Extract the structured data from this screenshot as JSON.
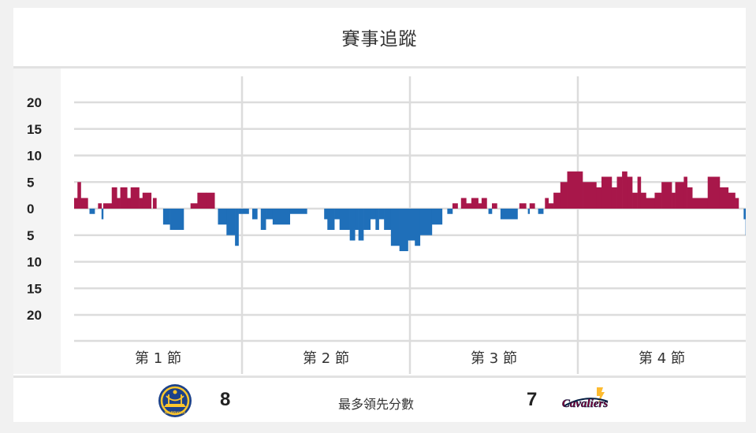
{
  "header": {
    "title": "賽事追蹤"
  },
  "footer": {
    "left_team": {
      "icon": "golden-state-warriors-logo",
      "value": "8",
      "logo_text": "WARRIORS"
    },
    "label": "最多領先分數",
    "right_team": {
      "icon": "cleveland-cavaliers-logo",
      "value": "7",
      "logo_text": "Cavaliers"
    }
  },
  "colors": {
    "positive": "#a8174a",
    "negative": "#1f6fb9",
    "grid": "#dcdcdc"
  },
  "chart_data": {
    "type": "bar",
    "title": "賽事追蹤",
    "ylim": [
      -20,
      20
    ],
    "ytick_labels": [
      "20",
      "15",
      "10",
      "5",
      "0",
      "5",
      "10",
      "15",
      "20"
    ],
    "ytick_values": [
      20,
      15,
      10,
      5,
      0,
      -5,
      -10,
      -15,
      -20
    ],
    "x_unit": "minutes",
    "xlim": [
      0,
      48
    ],
    "quarter_labels": [
      "第 1 節",
      "第 2 節",
      "第 3 節",
      "第 4 節"
    ],
    "grid": true,
    "series": [
      {
        "values": [
          [
            0.0,
            2
          ],
          [
            0.24,
            5
          ],
          [
            0.48,
            2
          ],
          [
            0.98,
            0
          ],
          [
            1.1,
            -1
          ],
          [
            1.47,
            0
          ],
          [
            1.71,
            1
          ],
          [
            1.96,
            -2
          ],
          [
            2.08,
            1
          ],
          [
            2.69,
            4
          ],
          [
            3.06,
            2
          ],
          [
            3.3,
            4
          ],
          [
            3.79,
            2
          ],
          [
            4.04,
            4
          ],
          [
            4.65,
            2
          ],
          [
            4.89,
            3
          ],
          [
            5.51,
            0
          ],
          [
            5.63,
            2
          ],
          [
            5.88,
            0
          ],
          [
            6.36,
            -3
          ],
          [
            6.85,
            -4
          ],
          [
            7.83,
            0
          ],
          [
            8.32,
            1
          ],
          [
            8.81,
            3
          ],
          [
            9.42,
            3
          ],
          [
            10.04,
            0
          ],
          [
            10.28,
            -3
          ],
          [
            10.89,
            -5
          ],
          [
            11.5,
            -7
          ],
          [
            11.75,
            -1
          ],
          [
            12.48,
            0
          ],
          [
            12.73,
            -2
          ],
          [
            13.09,
            0
          ],
          [
            13.34,
            -4
          ],
          [
            13.7,
            -2
          ],
          [
            14.19,
            -3
          ],
          [
            15.42,
            -1
          ],
          [
            16.64,
            0
          ],
          [
            17.87,
            -2
          ],
          [
            18.1,
            -4
          ],
          [
            18.6,
            -2
          ],
          [
            18.97,
            -4
          ],
          [
            19.7,
            -6
          ],
          [
            20.07,
            -4
          ],
          [
            20.32,
            -6
          ],
          [
            20.68,
            -4
          ],
          [
            21.17,
            -2
          ],
          [
            21.54,
            -4
          ],
          [
            21.78,
            -2
          ],
          [
            22.15,
            -4
          ],
          [
            22.64,
            -7
          ],
          [
            23.25,
            -8
          ],
          [
            23.86,
            -6
          ],
          [
            24.35,
            -7
          ],
          [
            24.72,
            -5
          ],
          [
            25.57,
            -3
          ],
          [
            26.3,
            0
          ],
          [
            26.67,
            -1
          ],
          [
            27.04,
            1
          ],
          [
            27.41,
            0
          ],
          [
            27.65,
            2
          ],
          [
            28.02,
            1
          ],
          [
            28.39,
            2
          ],
          [
            28.88,
            1
          ],
          [
            29.12,
            2
          ],
          [
            29.49,
            0
          ],
          [
            29.61,
            -1
          ],
          [
            29.86,
            1
          ],
          [
            30.22,
            0
          ],
          [
            30.47,
            -2
          ],
          [
            31.69,
            0
          ],
          [
            31.82,
            1
          ],
          [
            32.3,
            0
          ],
          [
            32.43,
            -1
          ],
          [
            32.55,
            1
          ],
          [
            32.92,
            0
          ],
          [
            33.16,
            -1
          ],
          [
            33.53,
            0
          ],
          [
            33.65,
            2
          ],
          [
            33.9,
            1
          ],
          [
            34.26,
            3
          ],
          [
            34.75,
            5
          ],
          [
            35.24,
            7
          ],
          [
            36.34,
            5
          ],
          [
            37.32,
            4
          ],
          [
            37.69,
            6
          ],
          [
            38.42,
            4
          ],
          [
            38.79,
            6
          ],
          [
            39.16,
            7
          ],
          [
            39.52,
            6
          ],
          [
            39.89,
            3
          ],
          [
            40.26,
            6
          ],
          [
            40.5,
            3
          ],
          [
            40.87,
            2
          ],
          [
            41.49,
            3
          ],
          [
            41.98,
            5
          ],
          [
            42.71,
            3
          ],
          [
            42.96,
            5
          ],
          [
            43.57,
            6
          ],
          [
            43.81,
            4
          ],
          [
            44.18,
            2
          ],
          [
            45.28,
            6
          ],
          [
            46.14,
            4
          ],
          [
            46.75,
            3
          ],
          [
            47.24,
            2
          ],
          [
            47.49,
            0
          ],
          [
            47.85,
            -2
          ],
          [
            47.98,
            -5
          ],
          [
            48.0,
            0
          ]
        ]
      }
    ],
    "positive_is": "cleveland-cavaliers",
    "negative_is": "golden-state-warriors"
  }
}
